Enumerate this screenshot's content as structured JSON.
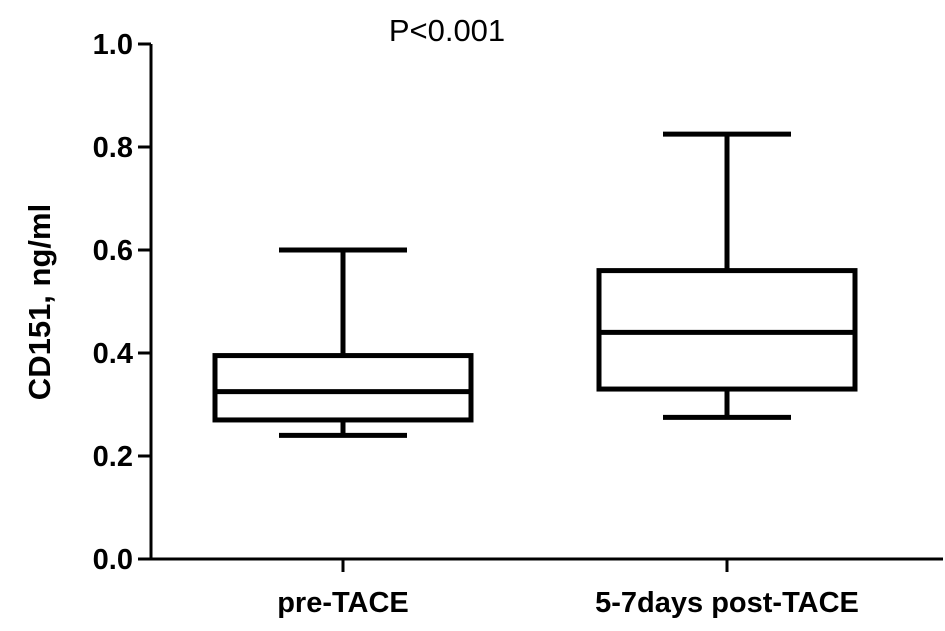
{
  "chart_data": {
    "type": "box",
    "title": "",
    "ylabel": "CD151, ng/ml",
    "xlabel": "",
    "ylim": [
      0.0,
      1.0
    ],
    "yticks": [
      "0.0",
      "0.2",
      "0.4",
      "0.6",
      "0.8",
      "1.0"
    ],
    "annotation": "P<0.001",
    "categories": [
      "pre-TACE",
      "5-7days post-TACE"
    ],
    "boxes": [
      {
        "category": "pre-TACE",
        "min": 0.24,
        "q1": 0.27,
        "median": 0.325,
        "q3": 0.395,
        "max": 0.6
      },
      {
        "category": "5-7days post-TACE",
        "min": 0.275,
        "q1": 0.33,
        "median": 0.44,
        "q3": 0.56,
        "max": 0.825
      }
    ],
    "colors": {
      "stroke": "#000000",
      "background": "#ffffff"
    }
  }
}
